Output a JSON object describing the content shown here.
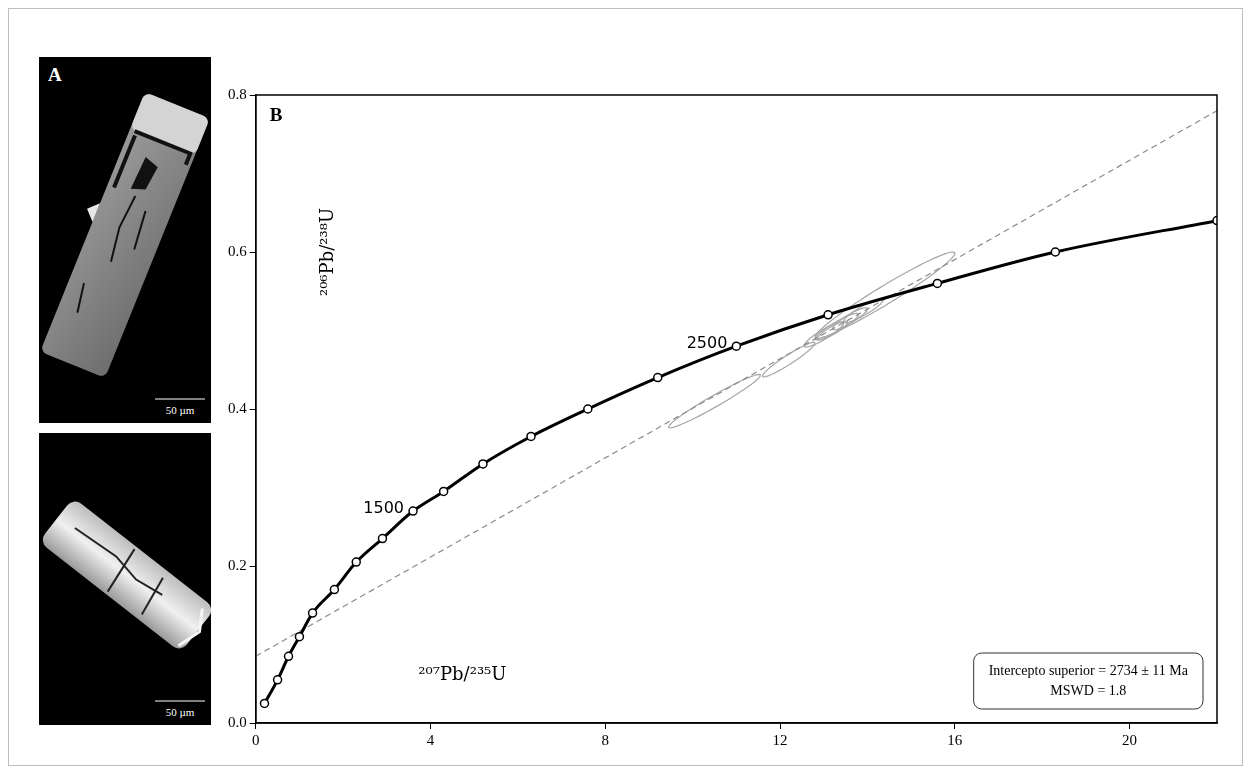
{
  "panel_a": {
    "label": "A",
    "images": [
      {
        "scale_bar": "50 µm"
      },
      {
        "scale_bar": "50 µm"
      }
    ]
  },
  "chart_data": {
    "type": "scatter",
    "panel_label": "B",
    "x_label": "²⁰⁷Pb/²³⁵U",
    "y_label": "²⁰⁶Pb/²³⁸U",
    "xlim": [
      0,
      22
    ],
    "xticks": [
      0,
      4,
      8,
      12,
      16,
      20
    ],
    "ylim": [
      0,
      0.8
    ],
    "yticks": [
      {
        "value": 0,
        "label": "0.0"
      },
      0.2,
      0.4,
      0.6,
      0.8
    ],
    "grid": false,
    "series": [
      {
        "type": "line",
        "color": "#000000",
        "marker": "circle",
        "x": [
          0.2,
          0.5,
          0.75,
          1.0,
          1.3,
          1.8,
          2.3,
          2.9,
          3.6,
          4.3,
          5.2,
          6.3,
          7.6,
          9.2,
          11,
          13.1,
          15.6,
          18.3,
          22
        ],
        "values": [
          0.025,
          0.055,
          0.085,
          0.11,
          0.14,
          0.17,
          0.205,
          0.235,
          0.27,
          0.295,
          0.33,
          0.365,
          0.4,
          0.44,
          0.48,
          0.52,
          0.56,
          0.6,
          0.64
        ]
      },
      {
        "type": "line",
        "color": "#8c8c8c",
        "line_style": "dashed",
        "x": [
          0,
          22
        ],
        "values": [
          0.085,
          0.78
        ]
      }
    ],
    "ellipses": {
      "color": "#a6a6a6",
      "items": [
        {
          "x": 10.5,
          "y": 0.41,
          "sx": 1.05,
          "sy": 0.034,
          "rho": 0.97
        },
        {
          "x": 12.2,
          "y": 0.463,
          "sx": 0.6,
          "sy": 0.022,
          "rho": 0.95
        },
        {
          "x": 13.0,
          "y": 0.495,
          "sx": 0.45,
          "sy": 0.016,
          "rho": 0.9
        },
        {
          "x": 13.2,
          "y": 0.5,
          "sx": 0.35,
          "sy": 0.012,
          "rho": 0.88
        },
        {
          "x": 13.3,
          "y": 0.505,
          "sx": 0.5,
          "sy": 0.017,
          "rho": 0.92
        },
        {
          "x": 13.6,
          "y": 0.515,
          "sx": 0.4,
          "sy": 0.014,
          "rho": 0.9
        },
        {
          "x": 13.9,
          "y": 0.525,
          "sx": 0.45,
          "sy": 0.015,
          "rho": 0.9
        },
        {
          "x": 14.4,
          "y": 0.545,
          "sx": 1.6,
          "sy": 0.055,
          "rho": 0.97
        }
      ]
    },
    "annotations": [
      {
        "text": "1500",
        "x": 3.6,
        "y": 0.27
      },
      {
        "text": "2500",
        "x": 11,
        "y": 0.48
      }
    ],
    "result_box": [
      "Intercepto superior = 2734 ± 11 Ma",
      "MSWD = 1.8"
    ]
  }
}
